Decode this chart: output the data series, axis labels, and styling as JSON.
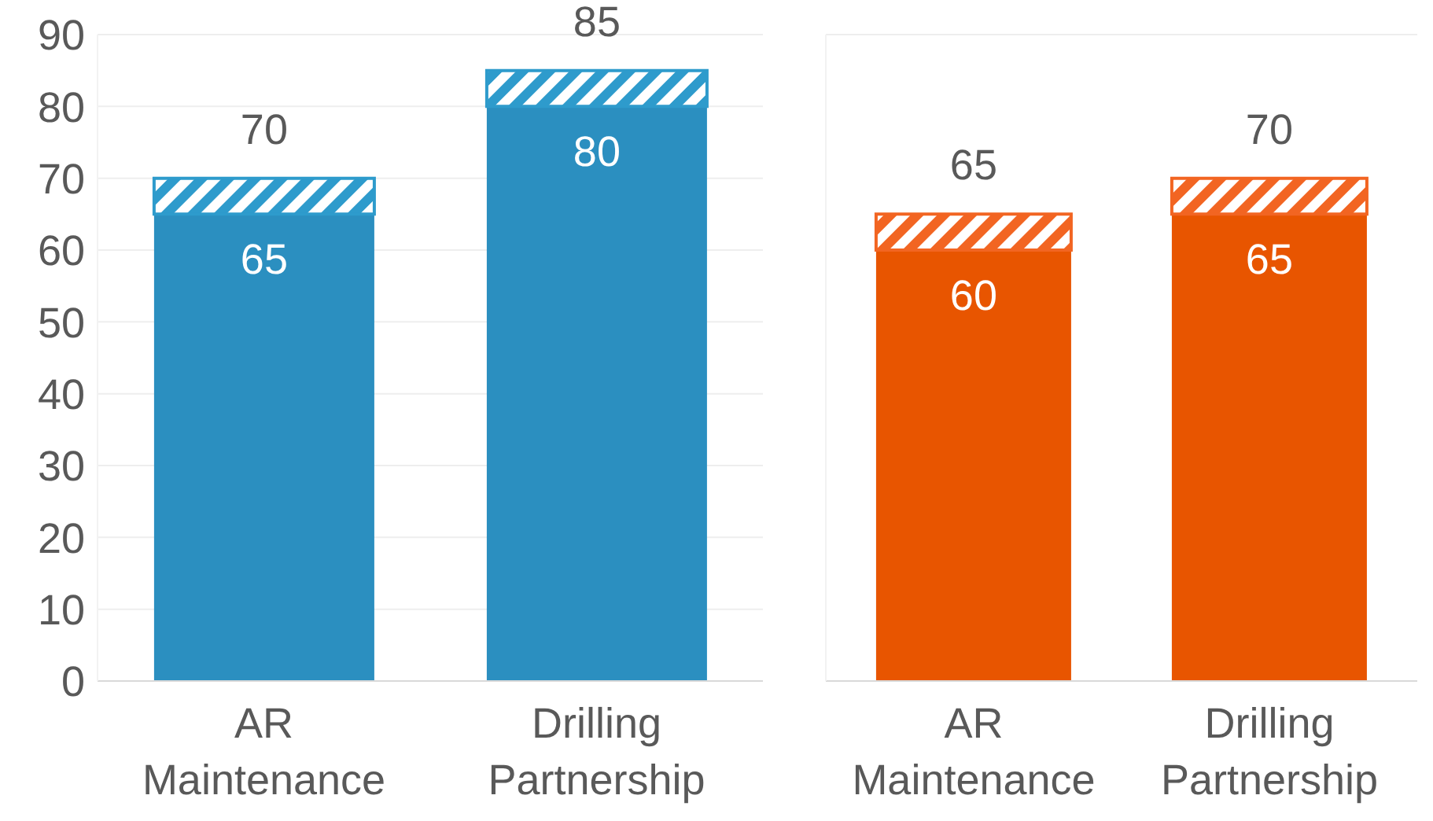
{
  "chart_data": [
    {
      "type": "bar",
      "stacked": true,
      "categories": [
        "AR Maintenance",
        "Drilling Partnership"
      ],
      "series": [
        {
          "color": "#2b8fc0",
          "values": [
            65,
            80
          ],
          "value_labels": [
            "65",
            "80"
          ]
        },
        {
          "color": "#2e9bcc",
          "values": [
            5,
            5
          ]
        }
      ],
      "totals": [
        "70",
        "85"
      ],
      "ylim": [
        0,
        90
      ],
      "yticks": [
        0,
        10,
        20,
        30,
        40,
        50,
        60,
        70,
        80,
        90
      ],
      "grid": "y"
    },
    {
      "type": "bar",
      "stacked": true,
      "categories": [
        "AR Maintenance",
        "Drilling Partnership"
      ],
      "series": [
        {
          "color": "#e85500",
          "values": [
            60,
            65
          ],
          "value_labels": [
            "60",
            "65"
          ]
        },
        {
          "color": "#f26522",
          "values": [
            5,
            5
          ]
        }
      ],
      "totals": [
        "65",
        "70"
      ],
      "ylim": [
        0,
        90
      ],
      "yticks": [
        0,
        10,
        20,
        30,
        40,
        50,
        60,
        70,
        80,
        90
      ],
      "grid": "y",
      "tick_labels": "x"
    }
  ]
}
